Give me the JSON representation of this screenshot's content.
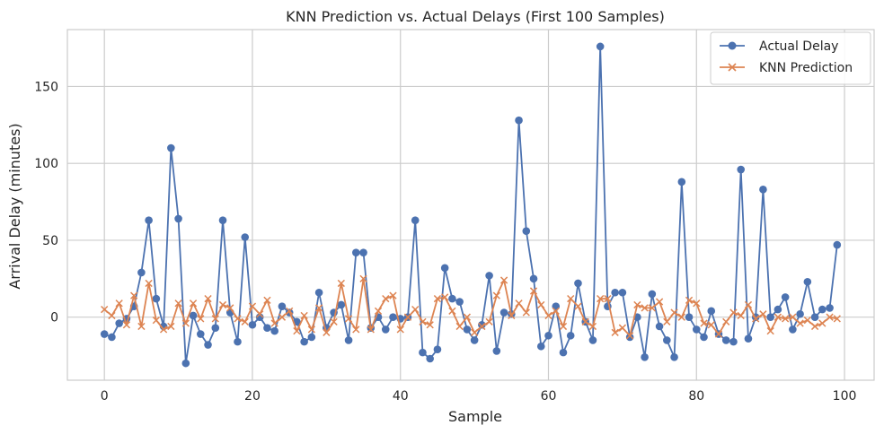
{
  "chart_data": {
    "type": "line",
    "title": "KNN Prediction vs. Actual Delays (First 100 Samples)",
    "xlabel": "Sample",
    "ylabel": "Arrival Delay (minutes)",
    "xlim": [
      -5,
      104
    ],
    "ylim": [
      -41,
      187
    ],
    "xticks": [
      0,
      20,
      40,
      60,
      80,
      100
    ],
    "yticks": [
      0,
      50,
      100,
      150
    ],
    "grid": true,
    "legend_position": "top-right",
    "series": [
      {
        "name": "Actual Delay",
        "color": "#4c72b0",
        "marker": "circle",
        "values": [
          -11,
          -13,
          -4,
          -1,
          7,
          29,
          63,
          12,
          -6,
          110,
          64,
          -30,
          1,
          -11,
          -18,
          -7,
          63,
          3,
          -16,
          52,
          -5,
          0,
          -7,
          -9,
          7,
          3,
          -3,
          -16,
          -13,
          16,
          -7,
          3,
          8,
          -15,
          42,
          42,
          -7,
          0,
          -8,
          0,
          -1,
          0,
          63,
          -23,
          -27,
          -21,
          32,
          12,
          10,
          -8,
          -15,
          -5,
          27,
          -22,
          3,
          2,
          128,
          56,
          25,
          -19,
          -12,
          7,
          -23,
          -12,
          22,
          -3,
          -15,
          176,
          7,
          16,
          16,
          -13,
          0,
          -26,
          15,
          -6,
          -15,
          -26,
          88,
          0,
          -8,
          -13,
          4,
          -11,
          -15,
          -16,
          96,
          -14,
          0,
          83,
          0,
          5,
          13,
          -8,
          2,
          23,
          0,
          5,
          6,
          47
        ]
      },
      {
        "name": "KNN Prediction",
        "color": "#dd8452",
        "marker": "x",
        "values": [
          5,
          1,
          9,
          -5,
          14,
          -6,
          22,
          -2,
          -8,
          -6,
          9,
          -4,
          9,
          -1,
          12,
          -1,
          8,
          6,
          -1,
          -3,
          7,
          2,
          11,
          -4,
          0,
          4,
          -9,
          1,
          -8,
          6,
          -10,
          -3,
          22,
          -1,
          -8,
          25,
          -8,
          4,
          12,
          14,
          -8,
          0,
          5,
          -3,
          -5,
          12,
          13,
          4,
          -6,
          0,
          -10,
          -6,
          -3,
          14,
          24,
          1,
          9,
          3,
          17,
          8,
          1,
          4,
          -6,
          12,
          7,
          -3,
          -6,
          12,
          12,
          -10,
          -7,
          -12,
          8,
          6,
          6,
          10,
          -3,
          3,
          0,
          11,
          9,
          -4,
          -5,
          -11,
          -3,
          3,
          1,
          8,
          -1,
          2,
          -9,
          0,
          -1,
          0,
          -4,
          -2,
          -6,
          -4,
          0,
          -1
        ]
      }
    ]
  }
}
